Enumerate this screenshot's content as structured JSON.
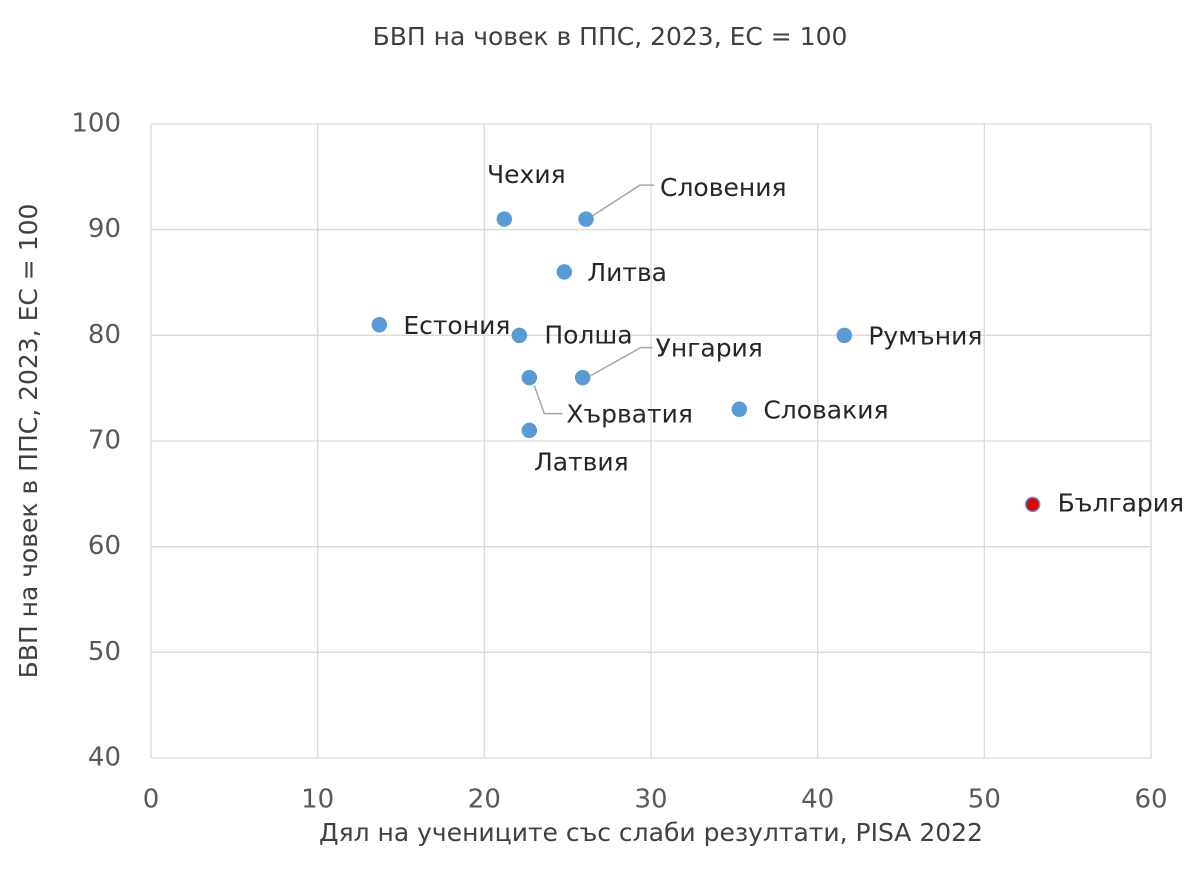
{
  "chart_data": {
    "type": "scatter",
    "title": "БВП на човек в ППС, 2023, ЕС = 100",
    "x_label": "Дял на учениците със слаби резултати, PISA 2022",
    "y_label": "БВП на човек в ППС, 2023, ЕС = 100",
    "labels": [
      "Чехия",
      "Словения",
      "Литва",
      "Естония",
      "Полша",
      "Унгария",
      "Хърватия",
      "Латвия",
      "Словакия",
      "Румъния",
      "България"
    ],
    "x": [
      21.2,
      26.1,
      24.8,
      13.7,
      22.1,
      25.9,
      22.7,
      22.7,
      35.3,
      41.6,
      52.9
    ],
    "values": [
      91,
      91,
      86,
      81,
      80,
      76,
      76,
      71,
      73,
      80,
      64
    ],
    "colors": [
      "#5b9bd5",
      "#5b9bd5",
      "#5b9bd5",
      "#5b9bd5",
      "#5b9bd5",
      "#5b9bd5",
      "#5b9bd5",
      "#5b9bd5",
      "#5b9bd5",
      "#5b9bd5",
      "#e00000"
    ],
    "xlim": [
      0,
      60
    ],
    "xticks": [
      0,
      10,
      20,
      30,
      40,
      50,
      60
    ],
    "ylim": [
      40,
      100
    ],
    "yticks": [
      40,
      50,
      60,
      70,
      80,
      90,
      100
    ],
    "grid": true
  }
}
